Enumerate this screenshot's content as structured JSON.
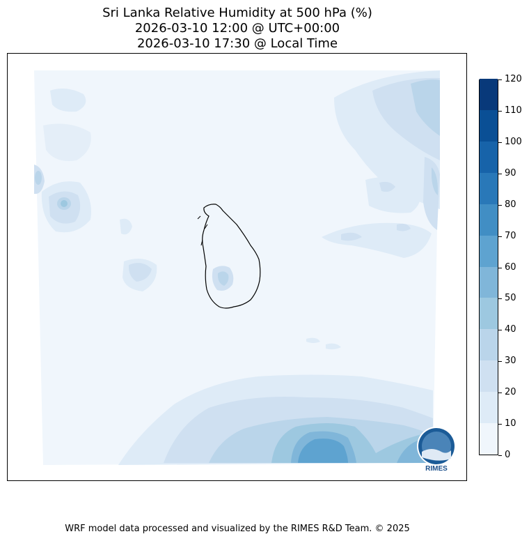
{
  "title": {
    "line1": "Sri Lanka Relative Humidity at 500 hPa (%)",
    "line2": "2026-03-10 12:00 @ UTC+00:00",
    "line3": "2026-03-10 17:30 @ Local Time"
  },
  "colorbar": {
    "ticks": [
      "0",
      "10",
      "20",
      "30",
      "40",
      "50",
      "60",
      "70",
      "80",
      "90",
      "100",
      "110",
      "120"
    ],
    "colors": [
      "#f0f6fc",
      "#deebf7",
      "#cfe0f1",
      "#bad5ea",
      "#9dc8e0",
      "#80b6d9",
      "#5ea3d0",
      "#418ec4",
      "#2978b8",
      "#1763a9",
      "#0a4f95",
      "#08397a"
    ]
  },
  "logo": {
    "text": "RIMES"
  },
  "footer": "WRF model data processed and visualized by the RIMES R&D Team. © 2025"
}
